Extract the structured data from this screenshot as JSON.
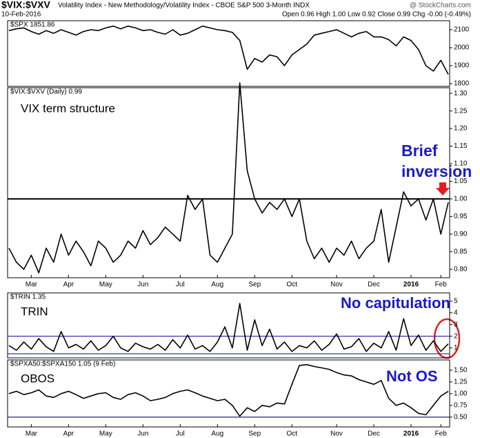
{
  "header": {
    "symbol": "$VIX:$VXV",
    "description": "Volatility Index - New Methodology/Volatility Index - CBOE S&P 500 3-Month INDX",
    "date": "10-Feb-2016",
    "quote": "Open 0.96 High 1.00 Low 0.92 Close 0.99 Chg -0.00 (-0.49%)",
    "source": "@ StockCharts.com"
  },
  "chart_data": [
    {
      "type": "line",
      "label": "$SPX 1851.86",
      "color": "#000000",
      "values": [
        2095,
        2105,
        2110,
        2090,
        2075,
        2095,
        2080,
        2100,
        2085,
        2070,
        2090,
        2100,
        2095,
        2110,
        2120,
        2105,
        2120,
        2110,
        2095,
        2100,
        2085,
        2075,
        2100,
        2070,
        2080,
        2100,
        2120,
        2110,
        2100,
        2095,
        2085,
        2040,
        1880,
        1940,
        1920,
        1960,
        1950,
        1900,
        1960,
        1990,
        2020,
        2070,
        2080,
        2090,
        2100,
        2080,
        2060,
        2080,
        2090,
        2060,
        2060,
        2045,
        2010,
        2060,
        2040,
        1990,
        1900,
        1870,
        1930,
        1852
      ],
      "ylim": [
        1785,
        2150
      ],
      "yticks": [
        1800,
        1900,
        2000,
        2100
      ]
    },
    {
      "type": "line",
      "label": "$VIX:$VXV (Daily) 0.99",
      "color": "#000000",
      "annotations": [
        {
          "text": [
            "VIX term structure"
          ],
          "color": "#000000"
        },
        {
          "text": [
            "Brief",
            "inversion"
          ],
          "color": "#1a1acc"
        }
      ],
      "categories": [
        null,
        null,
        null,
        "Mar",
        null,
        null,
        null,
        null,
        "Apr",
        null,
        null,
        null,
        null,
        "May",
        null,
        null,
        null,
        null,
        "Jun",
        null,
        null,
        null,
        null,
        "Jul",
        null,
        null,
        null,
        null,
        "Aug",
        null,
        null,
        null,
        null,
        "Sep",
        null,
        null,
        null,
        null,
        "Oct",
        null,
        null,
        null,
        null,
        null,
        "Nov",
        null,
        null,
        null,
        null,
        "Dec",
        null,
        null,
        null,
        null,
        "2016",
        null,
        null,
        null,
        "Feb",
        null
      ],
      "values": [
        0.86,
        0.82,
        0.8,
        0.84,
        0.79,
        0.86,
        0.82,
        0.9,
        0.84,
        0.88,
        0.85,
        0.81,
        0.88,
        0.86,
        0.82,
        0.84,
        0.88,
        0.86,
        0.91,
        0.87,
        0.89,
        0.92,
        0.9,
        0.88,
        1.01,
        0.97,
        1.0,
        0.84,
        0.82,
        0.86,
        0.9,
        1.33,
        1.08,
        1.0,
        0.96,
        0.99,
        0.97,
        1.0,
        0.95,
        1.0,
        0.88,
        0.83,
        0.86,
        0.82,
        0.86,
        0.84,
        0.88,
        0.83,
        0.86,
        0.88,
        0.97,
        0.82,
        0.92,
        1.02,
        0.98,
        1.0,
        0.94,
        1.0,
        0.9,
        0.99
      ],
      "ylim": [
        0.776,
        1.316
      ],
      "yticks": [
        {
          "value": 0.8,
          "label": "0.80"
        },
        0.85,
        {
          "value": 0.9,
          "label": "0.90"
        },
        0.95,
        {
          "value": 1,
          "label": "1.00"
        },
        1.05,
        {
          "value": 1.1,
          "label": "1.10"
        },
        1.15,
        {
          "value": 1.2,
          "label": "1.20"
        },
        1.25,
        {
          "value": 1.3,
          "label": "1.30"
        }
      ],
      "hlines": [
        {
          "value": 1,
          "color": "#000000"
        }
      ]
    },
    {
      "type": "line",
      "label": "$TRIN 1.35",
      "color": "#000000",
      "annotations": [
        {
          "text": [
            "TRIN"
          ],
          "color": "#000000"
        },
        {
          "text": [
            "No capitulation"
          ],
          "color": "#1a1acc"
        }
      ],
      "values": [
        1.2,
        0.8,
        1.5,
        0.9,
        1.8,
        1.1,
        0.7,
        2.4,
        1.0,
        1.3,
        0.9,
        1.6,
        0.8,
        1.2,
        2.0,
        1.0,
        0.7,
        1.4,
        1.1,
        0.9,
        1.3,
        0.8,
        1.7,
        1.0,
        2.1,
        0.9,
        1.2,
        0.7,
        1.5,
        2.8,
        1.0,
        4.8,
        0.8,
        3.4,
        1.2,
        2.6,
        0.9,
        1.5,
        0.7,
        1.2,
        1.0,
        1.6,
        0.8,
        1.3,
        2.2,
        0.9,
        1.1,
        1.8,
        0.7,
        1.4,
        1.0,
        2.4,
        0.8,
        3.5,
        1.2,
        2.1,
        0.8,
        1.6,
        0.7,
        1.35
      ],
      "ylim": [
        0.15,
        5.7
      ],
      "yticks": [
        1,
        2,
        3,
        4,
        5
      ],
      "hlines": [
        {
          "value": 2,
          "color": "#1f1f9e"
        },
        {
          "value": 0.5,
          "color": "#1f1f9e"
        }
      ]
    },
    {
      "type": "line",
      "label": "$SPXA50:$SPXA150 1.05 (9 Feb)",
      "color": "#000000",
      "annotations": [
        {
          "text": [
            "OBOS"
          ],
          "color": "#000000"
        },
        {
          "text": [
            "Not OS"
          ],
          "color": "#1a1acc"
        }
      ],
      "categories": [
        null,
        null,
        null,
        "Mar",
        null,
        null,
        null,
        null,
        "Apr",
        null,
        null,
        null,
        null,
        "May",
        null,
        null,
        null,
        null,
        "Jun",
        null,
        null,
        null,
        null,
        "Jul",
        null,
        null,
        null,
        null,
        "Aug",
        null,
        null,
        null,
        null,
        "Sep",
        null,
        null,
        null,
        null,
        "Oct",
        null,
        null,
        null,
        null,
        null,
        "Nov",
        null,
        null,
        null,
        null,
        "Dec",
        null,
        null,
        null,
        null,
        "2016",
        null,
        null,
        null,
        "Feb",
        null
      ],
      "values": [
        1.0,
        1.05,
        0.98,
        1.02,
        1.08,
        0.95,
        0.92,
        1.0,
        1.05,
        0.98,
        0.9,
        0.95,
        1.0,
        1.02,
        0.92,
        0.88,
        0.98,
        1.02,
        0.95,
        0.85,
        0.88,
        0.92,
        1.0,
        1.05,
        1.08,
        1.02,
        0.95,
        0.9,
        0.85,
        0.88,
        0.75,
        0.52,
        0.7,
        0.62,
        0.75,
        0.72,
        0.8,
        0.78,
        1.2,
        1.6,
        1.62,
        1.58,
        1.55,
        1.52,
        1.45,
        1.4,
        1.38,
        1.3,
        1.25,
        1.2,
        1.28,
        0.9,
        0.75,
        0.8,
        0.7,
        0.58,
        0.55,
        0.75,
        0.95,
        1.05
      ],
      "ylim": [
        0.29,
        1.72
      ],
      "yticks": [
        {
          "value": 0.5,
          "label": "0.50"
        },
        0.75,
        {
          "value": 1,
          "label": "1.00"
        },
        1.25,
        {
          "value": 1.5,
          "label": "1.50"
        }
      ],
      "hlines": [
        {
          "value": 0.5,
          "color": "#1f1f9e"
        }
      ]
    }
  ]
}
